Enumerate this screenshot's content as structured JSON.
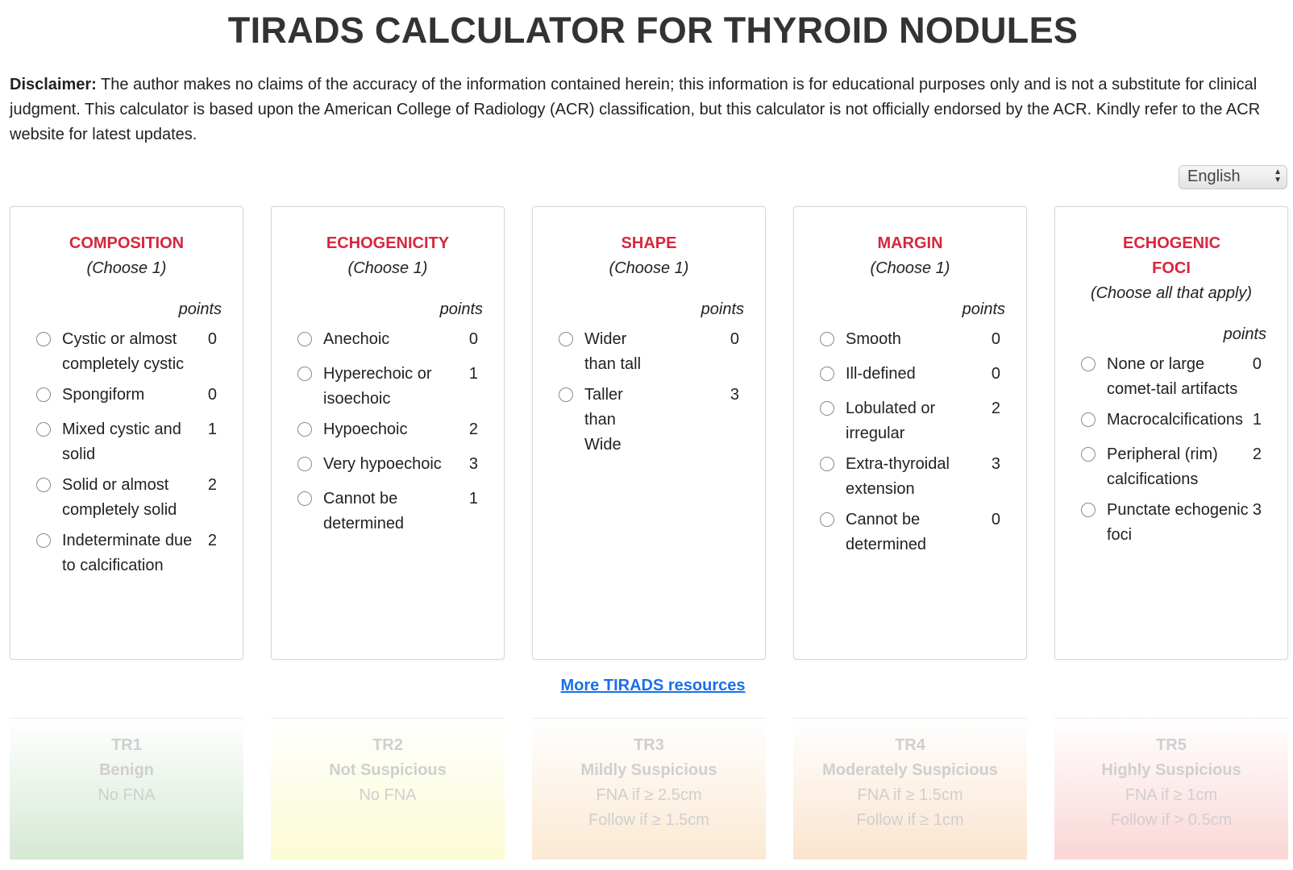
{
  "title": "TIRADS CALCULATOR FOR THYROID NODULES",
  "disclaimer": {
    "label": "Disclaimer:",
    "text": " The author makes no claims of the accuracy of the information contained herein; this information is for educational purposes only and is not a substitute for clinical judgment. This calculator is based upon the American College of Radiology (ACR) classification, but this calculator is not officially endorsed by the ACR. Kindly refer to the ACR website for latest updates."
  },
  "language": {
    "selected": "English"
  },
  "cards": [
    {
      "title": "COMPOSITION",
      "subtitle": "(Choose 1)",
      "points_header": "points",
      "options": [
        {
          "label": "Cystic or almost completely cystic",
          "points": "0"
        },
        {
          "label": "Spongiform",
          "points": "0"
        },
        {
          "label": "Mixed cystic and solid",
          "points": "1"
        },
        {
          "label": "Solid or almost completely solid",
          "points": "2"
        },
        {
          "label": "Indeterminate due to calcification",
          "points": "2"
        }
      ]
    },
    {
      "title": "ECHOGENICITY",
      "subtitle": "(Choose 1)",
      "points_header": "points",
      "options": [
        {
          "label": "Anechoic",
          "points": "0"
        },
        {
          "label": "Hyperechoic or isoechoic",
          "points": "1"
        },
        {
          "label": "Hypoechoic",
          "points": "2"
        },
        {
          "label": "Very hypoechoic",
          "points": "3"
        },
        {
          "label": "Cannot be determined",
          "points": "1"
        }
      ]
    },
    {
      "title": "SHAPE",
      "subtitle": "(Choose 1)",
      "points_header": "points",
      "options": [
        {
          "label": "Wider than tall",
          "points": "0"
        },
        {
          "label": "Taller than Wide",
          "points": "3"
        }
      ]
    },
    {
      "title": "MARGIN",
      "subtitle": "(Choose 1)",
      "points_header": "points",
      "options": [
        {
          "label": "Smooth",
          "points": "0"
        },
        {
          "label": "Ill-defined",
          "points": "0"
        },
        {
          "label": "Lobulated or irregular",
          "points": "2"
        },
        {
          "label": "Extra-thyroidal extension",
          "points": "3"
        },
        {
          "label": "Cannot be determined",
          "points": "0"
        }
      ]
    },
    {
      "title": "ECHOGENIC FOCI",
      "subtitle": "(Choose all that apply)",
      "points_header": "points",
      "options": [
        {
          "label": "None or large comet-tail artifacts",
          "points": "0"
        },
        {
          "label": "Macrocalcifications",
          "points": "1"
        },
        {
          "label": "Peripheral (rim) calcifications",
          "points": "2"
        },
        {
          "label": "Punctate echogenic foci",
          "points": "3"
        }
      ]
    }
  ],
  "more_link": "More TIRADS resources",
  "tr_levels": [
    {
      "code": "TR1",
      "name": "Benign",
      "lines": [
        "No FNA"
      ],
      "color_top": "#ffffff",
      "color_bottom": "#d5e9d4"
    },
    {
      "code": "TR2",
      "name": "Not Suspicious",
      "lines": [
        "No FNA"
      ],
      "color_top": "#ffffff",
      "color_bottom": "#fbfbd3"
    },
    {
      "code": "TR3",
      "name": "Mildly Suspicious",
      "lines": [
        "FNA if ≥ 2.5cm",
        "Follow if ≥ 1.5cm"
      ],
      "color_top": "#ffffff",
      "color_bottom": "#fbe9d3"
    },
    {
      "code": "TR4",
      "name": "Moderately Suspicious",
      "lines": [
        "FNA if ≥ 1.5cm",
        "Follow if ≥ 1cm"
      ],
      "color_top": "#ffffff",
      "color_bottom": "#fbe4cf"
    },
    {
      "code": "TR5",
      "name": "Highly Suspicious",
      "lines": [
        "FNA if ≥ 1cm",
        "Follow if > 0.5cm"
      ],
      "color_top": "#ffffff",
      "color_bottom": "#fbd6d6"
    }
  ],
  "colors": {
    "card_title": "#d7263d",
    "link": "#1a6fe8",
    "tr_text": "#cfcfcf"
  }
}
